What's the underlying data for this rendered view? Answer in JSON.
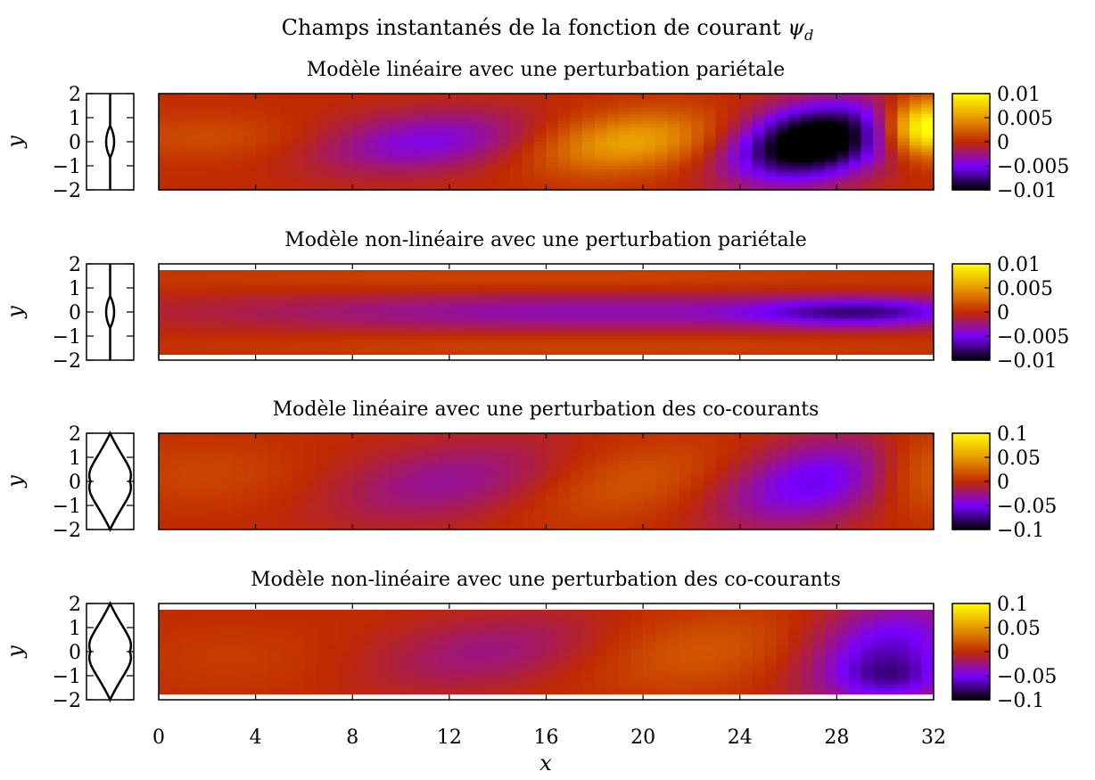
{
  "figure": {
    "title_text": "Champs instantanés de la fonction de courant",
    "title_symbol": "ψ",
    "title_subscript": "d"
  },
  "chart_data": {
    "type": "heatmap",
    "title": "Champs instantanés de la fonction de courant ψd",
    "xlabel": "x",
    "ylabel": "y",
    "xlim": [
      0,
      32
    ],
    "ylim": [
      -2,
      2
    ],
    "x_ticks": [
      "0",
      "4",
      "8",
      "12",
      "16",
      "20",
      "24",
      "28",
      "32"
    ],
    "y_ticks": [
      "2",
      "1",
      "0",
      "−1",
      "−2"
    ],
    "colormap": [
      "#000000",
      "#7a00ff",
      "#c02a00",
      "#e89a00",
      "#ffff00"
    ],
    "panels": [
      {
        "title": "Modèle linéaire avec une perturbation pariétale",
        "profile": "parietal",
        "colorbar_ticks": [
          "0.01",
          "0.005",
          "0",
          "−0.005",
          "−0.01"
        ],
        "cbar_range": [
          -0.01,
          0.01
        ],
        "y_extent": [
          -2,
          2
        ],
        "blobs": [
          {
            "x": 2,
            "y": 0.2,
            "sx": 3,
            "sy": 0.7,
            "a": 0.0015,
            "tilt": 0
          },
          {
            "x": 11,
            "y": 0,
            "sx": 3,
            "sy": 0.9,
            "a": -0.0045,
            "tilt": -0.22
          },
          {
            "x": 19.5,
            "y": 0,
            "sx": 2.6,
            "sy": 0.9,
            "a": 0.0055,
            "tilt": -0.2
          },
          {
            "x": 27,
            "y": 0,
            "sx": 2.2,
            "sy": 1.1,
            "a": -0.013,
            "tilt": -0.15
          },
          {
            "x": 31.7,
            "y": 0.6,
            "sx": 1.2,
            "sy": 0.8,
            "a": 0.012,
            "tilt": 0
          }
        ]
      },
      {
        "title": "Modèle non-linéaire avec une perturbation pariétale",
        "profile": "parietal",
        "colorbar_ticks": [
          "0.01",
          "0.005",
          "0",
          "−0.005",
          "−0.01"
        ],
        "cbar_range": [
          -0.01,
          0.01
        ],
        "y_extent": [
          -1.75,
          1.75
        ],
        "blobs": [
          {
            "x": 18,
            "y": 0,
            "sx": 11,
            "sy": 0.55,
            "a": -0.0035,
            "tilt": -0.02
          },
          {
            "x": 29,
            "y": 0,
            "sx": 3,
            "sy": 0.4,
            "a": -0.0055,
            "tilt": 0
          },
          {
            "x": 16,
            "y": 1.4,
            "sx": 14,
            "sy": 0.35,
            "a": 0.0012,
            "tilt": 0
          },
          {
            "x": 18,
            "y": -1.4,
            "sx": 12,
            "sy": 0.35,
            "a": 0.0012,
            "tilt": 0
          }
        ]
      },
      {
        "title": "Modèle linéaire avec une perturbation des co-courants",
        "profile": "co-courants",
        "colorbar_ticks": [
          "0.1",
          "0.05",
          "0",
          "−0.05",
          "−0.1"
        ],
        "cbar_range": [
          -0.1,
          0.1
        ],
        "y_extent": [
          -2,
          2
        ],
        "blobs": [
          {
            "x": 2,
            "y": 0.3,
            "sx": 3,
            "sy": 1,
            "a": 0.012,
            "tilt": 0
          },
          {
            "x": 12,
            "y": 0,
            "sx": 3.2,
            "sy": 1.2,
            "a": -0.03,
            "tilt": -0.25
          },
          {
            "x": 19.5,
            "y": 0,
            "sx": 3,
            "sy": 1.2,
            "a": 0.02,
            "tilt": -0.25
          },
          {
            "x": 27,
            "y": 0,
            "sx": 2.5,
            "sy": 1.3,
            "a": -0.055,
            "tilt": -0.2
          },
          {
            "x": 31.5,
            "y": 0.5,
            "sx": 1.5,
            "sy": 1.2,
            "a": 0.03,
            "tilt": 0
          }
        ]
      },
      {
        "title": "Modèle non-linéaire avec une perturbation des co-courants",
        "profile": "co-courants",
        "colorbar_ticks": [
          "0.1",
          "0.05",
          "0",
          "−0.05",
          "−0.1"
        ],
        "cbar_range": [
          -0.1,
          0.1
        ],
        "y_extent": [
          -1.75,
          1.75
        ],
        "blobs": [
          {
            "x": 3,
            "y": -0.3,
            "sx": 3,
            "sy": 1,
            "a": 0.008,
            "tilt": 0
          },
          {
            "x": 13.5,
            "y": 0,
            "sx": 3,
            "sy": 1.1,
            "a": -0.025,
            "tilt": -0.25
          },
          {
            "x": 22.5,
            "y": 0,
            "sx": 3,
            "sy": 1.2,
            "a": 0.02,
            "tilt": -0.2
          },
          {
            "x": 30,
            "y": 0,
            "sx": 2.2,
            "sy": 1.5,
            "a": -0.06,
            "tilt": -0.1
          },
          {
            "x": 30.5,
            "y": -1.1,
            "sx": 1.5,
            "sy": 0.6,
            "a": -0.03,
            "tilt": 0
          }
        ]
      }
    ]
  }
}
